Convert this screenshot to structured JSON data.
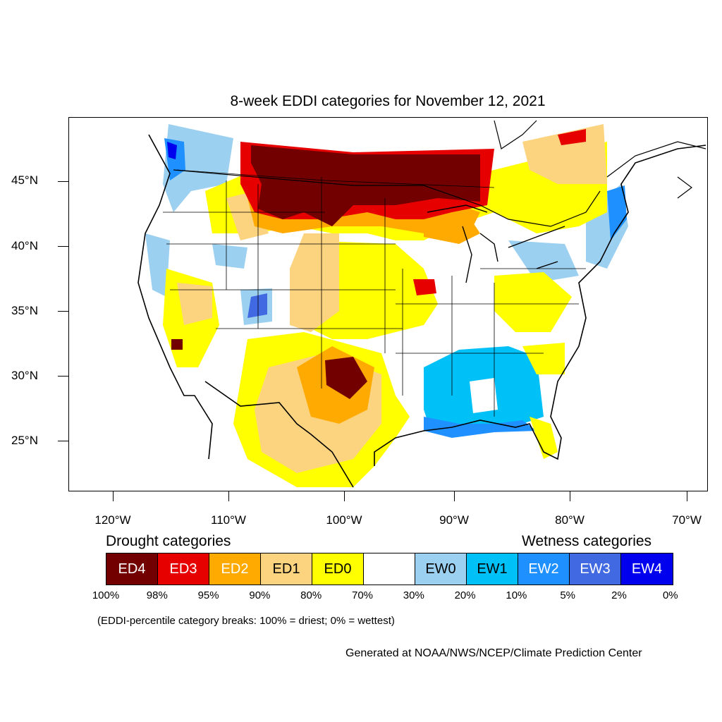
{
  "title": "8-week EDDI categories for November 12, 2021",
  "lat_labels": [
    "45°N",
    "40°N",
    "35°N",
    "30°N",
    "25°N"
  ],
  "lon_labels": [
    "120°W",
    "110°W",
    "100°W",
    "90°W",
    "80°W",
    "70°W"
  ],
  "legend": {
    "drought_title": "Drought categories",
    "wetness_title": "Wetness categories",
    "categories": [
      {
        "label": "ED4",
        "color": "#730000",
        "text_color": "#ffffff"
      },
      {
        "label": "ED3",
        "color": "#e60000",
        "text_color": "#ffffff"
      },
      {
        "label": "ED2",
        "color": "#ffaa00",
        "text_color": "#ffffff"
      },
      {
        "label": "ED1",
        "color": "#fcd37f",
        "text_color": "#000000"
      },
      {
        "label": "ED0",
        "color": "#ffff00",
        "text_color": "#000000"
      },
      {
        "label": "",
        "color": "#ffffff",
        "text_color": "#000000"
      },
      {
        "label": "EW0",
        "color": "#9cd0f0",
        "text_color": "#000000"
      },
      {
        "label": "EW1",
        "color": "#00c0f8",
        "text_color": "#000000"
      },
      {
        "label": "EW2",
        "color": "#1e90ff",
        "text_color": "#ffffff"
      },
      {
        "label": "EW3",
        "color": "#4169e1",
        "text_color": "#ffffff"
      },
      {
        "label": "EW4",
        "color": "#0000ee",
        "text_color": "#ffffff"
      }
    ],
    "breaks": [
      "100%",
      "98%",
      "95%",
      "90%",
      "80%",
      "70%",
      "30%",
      "20%",
      "10%",
      "5%",
      "2%",
      "0%"
    ]
  },
  "break_note": "(EDDI-percentile category breaks: 100% = driest; 0% = wettest)",
  "credit": "Generated at NOAA/NWS/NCEP/Climate Prediction Center"
}
